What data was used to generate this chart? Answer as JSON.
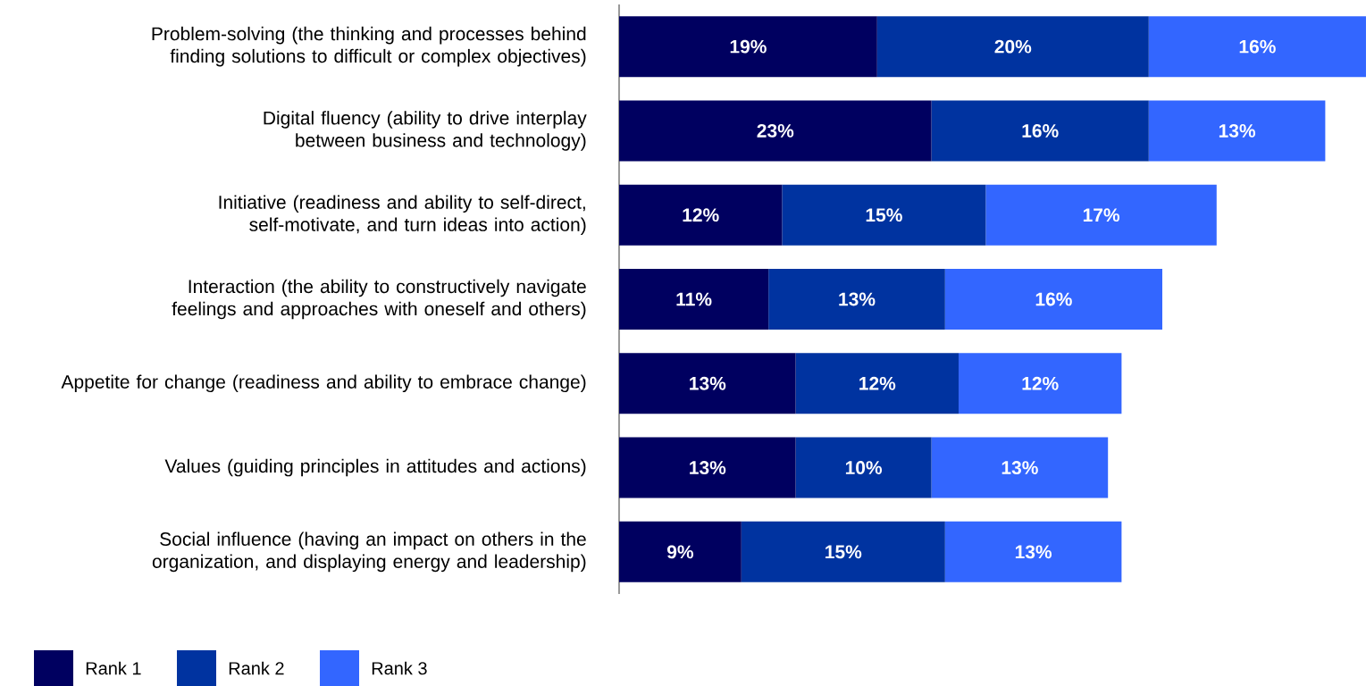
{
  "chart_data": {
    "type": "bar",
    "orientation": "horizontal",
    "stacked": true,
    "legend": "bottom left",
    "categories": [
      "Problem-solving (the thinking and processes behind finding solutions to difficult or complex objectives)",
      "Digital fluency (ability to drive interplay between business and technology)",
      "Initiative (readiness and ability to self-direct, self-motivate, and turn ideas into action)",
      "Interaction (the ability to constructively navigate feelings and approaches with oneself and others)",
      "Appetite for change (readiness and ability to embrace change)",
      "Values (guiding principles in attitudes and actions)",
      "Social influence (having an impact on others in the organization, and displaying energy and leadership)"
    ],
    "series": [
      {
        "name": "Rank 1",
        "color": "#000060",
        "values": [
          19,
          23,
          12,
          11,
          13,
          13,
          9
        ],
        "value_labels": [
          "19%",
          "23%",
          "12%",
          "11%",
          "13%",
          "13%",
          "9%"
        ]
      },
      {
        "name": "Rank 2",
        "color": "#0033a0",
        "values": [
          20,
          16,
          15,
          13,
          12,
          10,
          15
        ],
        "value_labels": [
          "20%",
          "16%",
          "15%",
          "13%",
          "12%",
          "10%",
          "15%"
        ]
      },
      {
        "name": "Rank 3",
        "color": "#3366ff",
        "values": [
          16,
          13,
          17,
          16,
          12,
          13,
          13
        ],
        "value_labels": [
          "16%",
          "13%",
          "17%",
          "16%",
          "12%",
          "13%",
          "13%"
        ]
      }
    ]
  }
}
